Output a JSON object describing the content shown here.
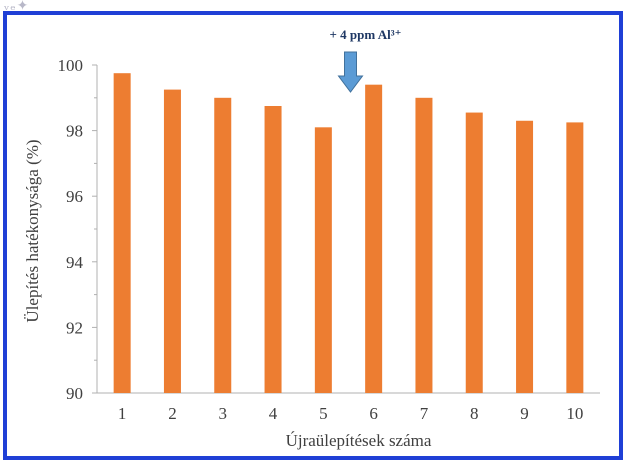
{
  "chart_data": {
    "type": "bar",
    "title": "",
    "xlabel": "Újraülepítések száma",
    "ylabel": "Ülepítés hatékonysága (%)",
    "categories": [
      "1",
      "2",
      "3",
      "4",
      "5",
      "6",
      "7",
      "8",
      "9",
      "10"
    ],
    "values": [
      99.75,
      99.25,
      99.0,
      98.75,
      98.1,
      99.4,
      99.0,
      98.55,
      98.3,
      98.25
    ],
    "ylim": [
      90,
      100
    ],
    "yticks": [
      90,
      92,
      94,
      96,
      98,
      100
    ],
    "grid": false,
    "legend": "none",
    "bar_color": "#ed7d31",
    "annotation": {
      "text": "+ 4 ppm Al³⁺",
      "text_color": "#1f3864",
      "arrow_color": "#5b9bd5",
      "between_categories": [
        "5",
        "6"
      ]
    }
  },
  "frame_color": "#1f3fd6"
}
